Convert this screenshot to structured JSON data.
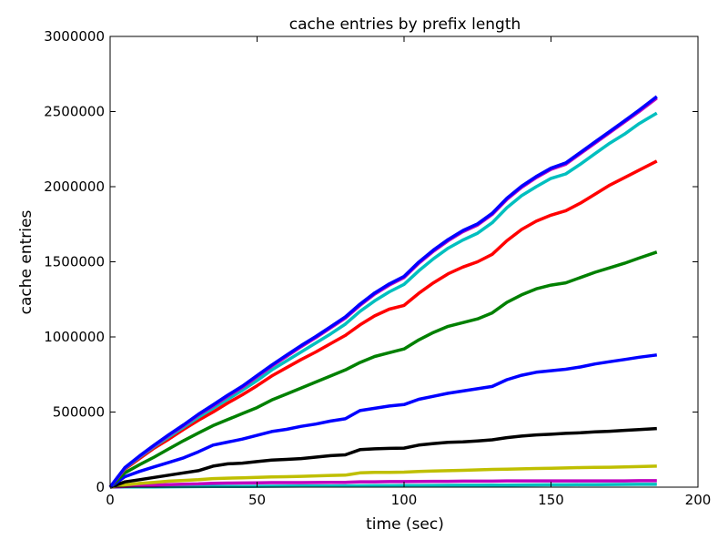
{
  "chart_data": {
    "type": "line",
    "title": "cache entries by prefix length",
    "xlabel": "time (sec)",
    "ylabel": "cache entries",
    "xlim": [
      0,
      200
    ],
    "ylim": [
      0,
      3000000
    ],
    "x_ticks": [
      0,
      50,
      100,
      150,
      200
    ],
    "y_ticks": [
      0,
      500000,
      1000000,
      1500000,
      2000000,
      2500000,
      3000000
    ],
    "x_tick_labels": [
      "0",
      "50",
      "100",
      "150",
      "200"
    ],
    "y_tick_labels": [
      "0",
      "500000",
      "1000000",
      "1500000",
      "2000000",
      "2500000",
      "3000000"
    ],
    "grid": false,
    "legend": "none",
    "x": [
      0,
      5,
      10,
      15,
      20,
      25,
      30,
      35,
      40,
      45,
      50,
      55,
      60,
      65,
      70,
      75,
      80,
      85,
      90,
      95,
      100,
      105,
      110,
      115,
      120,
      125,
      130,
      135,
      140,
      145,
      150,
      155,
      160,
      165,
      170,
      175,
      180,
      186
    ],
    "series": [
      {
        "color": "#00bfbf",
        "values": [
          0,
          1000,
          1500,
          2000,
          2500,
          3000,
          3500,
          4000,
          4500,
          5000,
          5500,
          6000,
          6500,
          7000,
          7500,
          8000,
          8500,
          9000,
          9500,
          10000,
          10500,
          11000,
          11500,
          12000,
          12500,
          13000,
          13500,
          14000,
          14500,
          15000,
          15500,
          16000,
          16500,
          17000,
          17500,
          18000,
          18500,
          19000
        ]
      },
      {
        "color": "#bf00bf",
        "values": [
          0,
          5000,
          10000,
          14000,
          17000,
          20000,
          22000,
          26000,
          27000,
          28000,
          29000,
          30000,
          30000,
          30000,
          31000,
          32000,
          32000,
          36000,
          36000,
          37000,
          37000,
          38000,
          39000,
          39000,
          40000,
          40000,
          40000,
          42000,
          42000,
          42000,
          42000,
          42000,
          42000,
          42000,
          42000,
          42000,
          43000,
          43000
        ]
      },
      {
        "color": "#bfbf00",
        "values": [
          0,
          15000,
          25000,
          32000,
          40000,
          45000,
          50000,
          57000,
          60000,
          62000,
          65000,
          68000,
          70000,
          72000,
          75000,
          78000,
          80000,
          95000,
          98000,
          98000,
          100000,
          105000,
          108000,
          110000,
          112000,
          115000,
          118000,
          120000,
          122000,
          124000,
          126000,
          128000,
          130000,
          132000,
          133000,
          135000,
          137000,
          140000
        ]
      },
      {
        "color": "#000000",
        "values": [
          0,
          35000,
          50000,
          65000,
          80000,
          95000,
          110000,
          140000,
          155000,
          160000,
          170000,
          180000,
          185000,
          190000,
          200000,
          210000,
          215000,
          250000,
          255000,
          258000,
          260000,
          280000,
          290000,
          298000,
          302000,
          308000,
          315000,
          330000,
          340000,
          348000,
          352000,
          358000,
          362000,
          368000,
          372000,
          378000,
          383000,
          390000
        ]
      },
      {
        "color": "#0000ff",
        "values": [
          0,
          70000,
          105000,
          135000,
          165000,
          195000,
          235000,
          280000,
          300000,
          320000,
          345000,
          370000,
          385000,
          405000,
          420000,
          440000,
          455000,
          510000,
          525000,
          540000,
          550000,
          585000,
          605000,
          625000,
          640000,
          655000,
          670000,
          715000,
          745000,
          765000,
          775000,
          785000,
          800000,
          820000,
          835000,
          850000,
          865000,
          880000
        ]
      },
      {
        "color": "#008000",
        "values": [
          0,
          95000,
          150000,
          200000,
          255000,
          310000,
          360000,
          410000,
          450000,
          490000,
          530000,
          580000,
          620000,
          660000,
          700000,
          740000,
          780000,
          830000,
          870000,
          895000,
          920000,
          980000,
          1030000,
          1070000,
          1095000,
          1120000,
          1160000,
          1230000,
          1280000,
          1320000,
          1345000,
          1360000,
          1395000,
          1430000,
          1460000,
          1490000,
          1525000,
          1565000
        ]
      },
      {
        "color": "#ff0000",
        "values": [
          0,
          120000,
          190000,
          260000,
          320000,
          385000,
          445000,
          500000,
          560000,
          615000,
          675000,
          740000,
          795000,
          850000,
          900000,
          955000,
          1010000,
          1080000,
          1140000,
          1185000,
          1210000,
          1290000,
          1360000,
          1420000,
          1465000,
          1500000,
          1550000,
          1640000,
          1715000,
          1770000,
          1810000,
          1840000,
          1890000,
          1950000,
          2010000,
          2060000,
          2110000,
          2170000
        ]
      },
      {
        "color": "#00bfbf",
        "values": [
          0,
          125000,
          200000,
          270000,
          335000,
          400000,
          465000,
          525000,
          585000,
          645000,
          710000,
          780000,
          840000,
          900000,
          960000,
          1020000,
          1085000,
          1170000,
          1240000,
          1300000,
          1350000,
          1440000,
          1520000,
          1590000,
          1645000,
          1690000,
          1760000,
          1860000,
          1940000,
          2000000,
          2055000,
          2085000,
          2150000,
          2220000,
          2290000,
          2350000,
          2420000,
          2490000
        ]
      },
      {
        "color": "#bf00bf",
        "values": [
          0,
          128000,
          205000,
          275000,
          345000,
          410000,
          480000,
          540000,
          605000,
          665000,
          735000,
          805000,
          870000,
          935000,
          995000,
          1060000,
          1125000,
          1210000,
          1285000,
          1345000,
          1395000,
          1490000,
          1570000,
          1640000,
          1700000,
          1745000,
          1815000,
          1915000,
          1995000,
          2060000,
          2115000,
          2150000,
          2220000,
          2290000,
          2360000,
          2430000,
          2500000,
          2590000
        ]
      },
      {
        "color": "#0000ff",
        "values": [
          0,
          130000,
          208000,
          280000,
          350000,
          415000,
          485000,
          548000,
          612000,
          673000,
          743000,
          813000,
          878000,
          943000,
          1003000,
          1068000,
          1133000,
          1218000,
          1293000,
          1353000,
          1403000,
          1498000,
          1578000,
          1648000,
          1708000,
          1753000,
          1823000,
          1923000,
          2003000,
          2068000,
          2123000,
          2158000,
          2228000,
          2298000,
          2368000,
          2438000,
          2510000,
          2600000
        ]
      }
    ]
  }
}
